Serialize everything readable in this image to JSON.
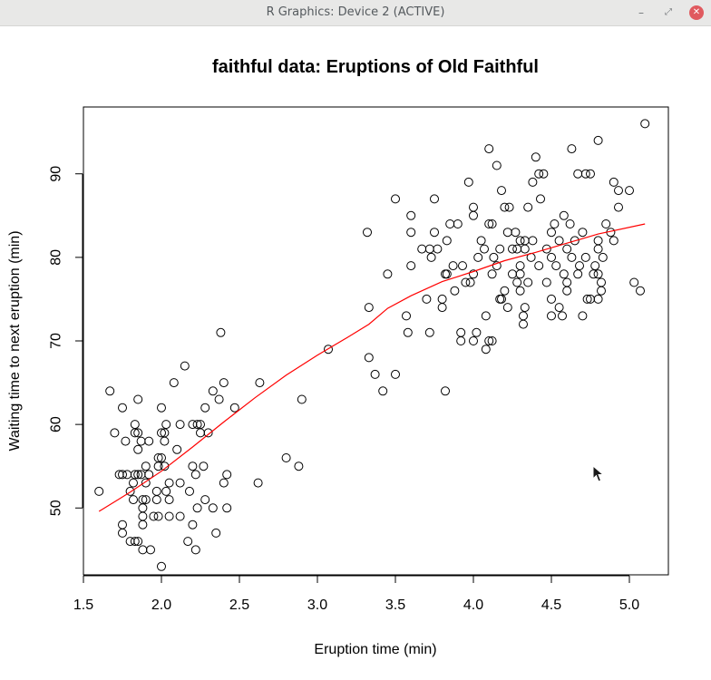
{
  "window": {
    "title": "R Graphics: Device 2 (ACTIVE)",
    "controls": {
      "minimize": "–",
      "maximize": "⤢",
      "close": "✕"
    }
  },
  "chart_data": {
    "type": "scatter",
    "title": "faithful data: Eruptions of Old Faithful",
    "xlabel": "Eruption time (min)",
    "ylabel": "Waiting time to next eruption (min)",
    "xlim": [
      1.5,
      5.25
    ],
    "ylim": [
      42,
      98
    ],
    "xticks": [
      "1.5",
      "2.0",
      "2.5",
      "3.0",
      "3.5",
      "4.0",
      "4.5",
      "5.0"
    ],
    "yticks": [
      "50",
      "60",
      "70",
      "80",
      "90"
    ],
    "grid": false,
    "colors": {
      "points": "#000000",
      "smoother": "#ff0000"
    },
    "series": [
      {
        "type": "scatter",
        "marker": "open-circle",
        "points": [
          [
            1.6,
            52
          ],
          [
            1.67,
            64
          ],
          [
            1.7,
            59
          ],
          [
            1.73,
            54
          ],
          [
            1.75,
            54
          ],
          [
            1.75,
            62
          ],
          [
            1.75,
            48
          ],
          [
            1.75,
            47
          ],
          [
            1.77,
            58
          ],
          [
            1.78,
            54
          ],
          [
            1.8,
            52
          ],
          [
            1.8,
            46
          ],
          [
            1.82,
            51
          ],
          [
            1.82,
            53
          ],
          [
            1.83,
            59
          ],
          [
            1.83,
            60
          ],
          [
            1.83,
            54
          ],
          [
            1.83,
            46
          ],
          [
            1.85,
            54
          ],
          [
            1.85,
            59
          ],
          [
            1.85,
            63
          ],
          [
            1.85,
            57
          ],
          [
            1.85,
            46
          ],
          [
            1.87,
            54
          ],
          [
            1.87,
            58
          ],
          [
            1.88,
            51
          ],
          [
            1.88,
            50
          ],
          [
            1.88,
            48
          ],
          [
            1.88,
            45
          ],
          [
            1.88,
            49
          ],
          [
            1.9,
            53
          ],
          [
            1.9,
            55
          ],
          [
            1.9,
            51
          ],
          [
            1.92,
            54
          ],
          [
            1.92,
            58
          ],
          [
            1.93,
            45
          ],
          [
            1.95,
            49
          ],
          [
            1.97,
            51
          ],
          [
            1.97,
            52
          ],
          [
            1.98,
            49
          ],
          [
            1.98,
            56
          ],
          [
            1.98,
            55
          ],
          [
            2.0,
            59
          ],
          [
            2.0,
            62
          ],
          [
            2.0,
            43
          ],
          [
            2.0,
            56
          ],
          [
            2.02,
            58
          ],
          [
            2.02,
            55
          ],
          [
            2.02,
            59
          ],
          [
            2.03,
            60
          ],
          [
            2.03,
            52
          ],
          [
            2.05,
            53
          ],
          [
            2.05,
            51
          ],
          [
            2.05,
            49
          ],
          [
            2.08,
            65
          ],
          [
            2.1,
            57
          ],
          [
            2.12,
            53
          ],
          [
            2.12,
            49
          ],
          [
            2.12,
            60
          ],
          [
            2.15,
            67
          ],
          [
            2.17,
            46
          ],
          [
            2.18,
            52
          ],
          [
            2.2,
            55
          ],
          [
            2.2,
            48
          ],
          [
            2.2,
            60
          ],
          [
            2.22,
            54
          ],
          [
            2.22,
            45
          ],
          [
            2.23,
            60
          ],
          [
            2.23,
            50
          ],
          [
            2.25,
            60
          ],
          [
            2.25,
            59
          ],
          [
            2.27,
            55
          ],
          [
            2.28,
            51
          ],
          [
            2.28,
            62
          ],
          [
            2.3,
            59
          ],
          [
            2.33,
            50
          ],
          [
            2.33,
            64
          ],
          [
            2.35,
            47
          ],
          [
            2.37,
            63
          ],
          [
            2.38,
            71
          ],
          [
            2.4,
            53
          ],
          [
            2.4,
            65
          ],
          [
            2.42,
            54
          ],
          [
            2.42,
            50
          ],
          [
            2.47,
            62
          ],
          [
            2.62,
            53
          ],
          [
            2.63,
            65
          ],
          [
            2.8,
            56
          ],
          [
            2.88,
            55
          ],
          [
            2.9,
            63
          ],
          [
            3.07,
            69
          ],
          [
            3.32,
            83
          ],
          [
            3.33,
            74
          ],
          [
            3.33,
            68
          ],
          [
            3.37,
            66
          ],
          [
            3.42,
            64
          ],
          [
            3.45,
            78
          ],
          [
            3.5,
            66
          ],
          [
            3.5,
            87
          ],
          [
            3.57,
            73
          ],
          [
            3.58,
            71
          ],
          [
            3.6,
            85
          ],
          [
            3.6,
            83
          ],
          [
            3.6,
            79
          ],
          [
            3.67,
            81
          ],
          [
            3.7,
            75
          ],
          [
            3.72,
            71
          ],
          [
            3.72,
            81
          ],
          [
            3.73,
            80
          ],
          [
            3.75,
            83
          ],
          [
            3.75,
            87
          ],
          [
            3.77,
            81
          ],
          [
            3.8,
            75
          ],
          [
            3.8,
            74
          ],
          [
            3.82,
            78
          ],
          [
            3.82,
            64
          ],
          [
            3.83,
            82
          ],
          [
            3.83,
            78
          ],
          [
            3.85,
            84
          ],
          [
            3.87,
            79
          ],
          [
            3.88,
            76
          ],
          [
            3.9,
            84
          ],
          [
            3.92,
            70
          ],
          [
            3.92,
            71
          ],
          [
            3.93,
            79
          ],
          [
            3.95,
            77
          ],
          [
            3.97,
            89
          ],
          [
            3.98,
            77
          ],
          [
            4.0,
            86
          ],
          [
            4.0,
            85
          ],
          [
            4.0,
            70
          ],
          [
            4.0,
            78
          ],
          [
            4.02,
            71
          ],
          [
            4.03,
            80
          ],
          [
            4.05,
            82
          ],
          [
            4.07,
            81
          ],
          [
            4.08,
            73
          ],
          [
            4.08,
            69
          ],
          [
            4.1,
            84
          ],
          [
            4.1,
            70
          ],
          [
            4.1,
            93
          ],
          [
            4.12,
            78
          ],
          [
            4.12,
            84
          ],
          [
            4.12,
            70
          ],
          [
            4.13,
            80
          ],
          [
            4.15,
            79
          ],
          [
            4.15,
            91
          ],
          [
            4.17,
            75
          ],
          [
            4.17,
            81
          ],
          [
            4.18,
            75
          ],
          [
            4.18,
            88
          ],
          [
            4.2,
            86
          ],
          [
            4.2,
            76
          ],
          [
            4.22,
            74
          ],
          [
            4.22,
            83
          ],
          [
            4.23,
            86
          ],
          [
            4.25,
            78
          ],
          [
            4.25,
            81
          ],
          [
            4.27,
            83
          ],
          [
            4.28,
            81
          ],
          [
            4.28,
            77
          ],
          [
            4.3,
            82
          ],
          [
            4.3,
            79
          ],
          [
            4.3,
            76
          ],
          [
            4.3,
            78
          ],
          [
            4.32,
            72
          ],
          [
            4.32,
            73
          ],
          [
            4.33,
            81
          ],
          [
            4.33,
            82
          ],
          [
            4.33,
            74
          ],
          [
            4.35,
            86
          ],
          [
            4.35,
            77
          ],
          [
            4.37,
            80
          ],
          [
            4.38,
            82
          ],
          [
            4.38,
            89
          ],
          [
            4.4,
            92
          ],
          [
            4.42,
            79
          ],
          [
            4.42,
            90
          ],
          [
            4.43,
            87
          ],
          [
            4.45,
            90
          ],
          [
            4.47,
            81
          ],
          [
            4.47,
            77
          ],
          [
            4.5,
            83
          ],
          [
            4.5,
            80
          ],
          [
            4.5,
            75
          ],
          [
            4.5,
            73
          ],
          [
            4.52,
            84
          ],
          [
            4.53,
            79
          ],
          [
            4.55,
            82
          ],
          [
            4.55,
            74
          ],
          [
            4.57,
            73
          ],
          [
            4.58,
            78
          ],
          [
            4.58,
            85
          ],
          [
            4.6,
            77
          ],
          [
            4.6,
            81
          ],
          [
            4.6,
            76
          ],
          [
            4.62,
            84
          ],
          [
            4.63,
            80
          ],
          [
            4.63,
            93
          ],
          [
            4.65,
            82
          ],
          [
            4.67,
            90
          ],
          [
            4.67,
            78
          ],
          [
            4.68,
            79
          ],
          [
            4.7,
            83
          ],
          [
            4.7,
            73
          ],
          [
            4.72,
            90
          ],
          [
            4.72,
            80
          ],
          [
            4.73,
            75
          ],
          [
            4.75,
            75
          ],
          [
            4.75,
            90
          ],
          [
            4.77,
            78
          ],
          [
            4.78,
            79
          ],
          [
            4.8,
            94
          ],
          [
            4.8,
            81
          ],
          [
            4.8,
            82
          ],
          [
            4.8,
            75
          ],
          [
            4.8,
            78
          ],
          [
            4.82,
            76
          ],
          [
            4.82,
            77
          ],
          [
            4.83,
            80
          ],
          [
            4.85,
            84
          ],
          [
            4.88,
            83
          ],
          [
            4.9,
            82
          ],
          [
            4.9,
            89
          ],
          [
            4.93,
            88
          ],
          [
            4.93,
            86
          ],
          [
            5.0,
            88
          ],
          [
            5.03,
            77
          ],
          [
            5.07,
            76
          ],
          [
            5.1,
            96
          ]
        ]
      },
      {
        "type": "line",
        "name": "",
        "points": [
          [
            1.6,
            49.6
          ],
          [
            1.8,
            51.9
          ],
          [
            2.0,
            54.4
          ],
          [
            2.2,
            57.3
          ],
          [
            2.4,
            60.3
          ],
          [
            2.6,
            63.2
          ],
          [
            2.8,
            65.9
          ],
          [
            3.0,
            68.3
          ],
          [
            3.2,
            70.5
          ],
          [
            3.33,
            72.0
          ],
          [
            3.45,
            73.9
          ],
          [
            3.6,
            75.4
          ],
          [
            3.8,
            77.1
          ],
          [
            4.0,
            78.3
          ],
          [
            4.2,
            79.6
          ],
          [
            4.4,
            80.6
          ],
          [
            4.6,
            81.7
          ],
          [
            4.8,
            82.8
          ],
          [
            5.1,
            84.0
          ]
        ]
      }
    ]
  }
}
